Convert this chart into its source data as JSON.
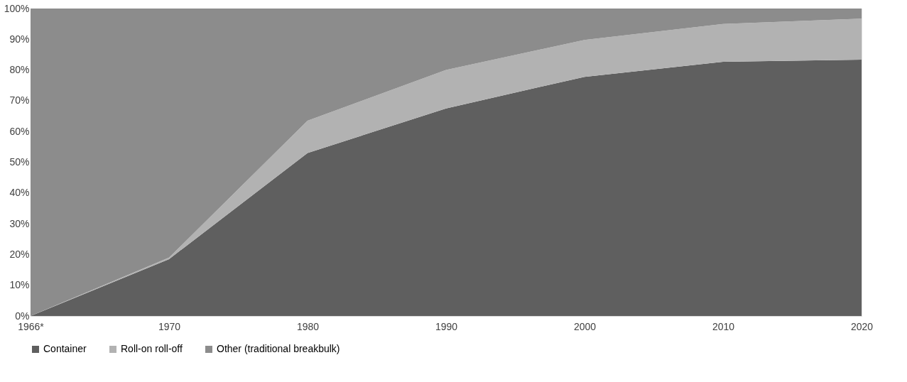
{
  "chart_data": {
    "type": "area",
    "stacked": true,
    "categories": [
      "1966*",
      "1970",
      "1980",
      "1990",
      "2000",
      "2010",
      "2020"
    ],
    "series": [
      {
        "name": "Container",
        "color": "#5f5f5f",
        "values": [
          0,
          18.5,
          53,
          67.5,
          77.8,
          82.7,
          83.4
        ]
      },
      {
        "name": "Roll-on roll-off",
        "color": "#b2b2b2",
        "values": [
          0,
          0.5,
          10.5,
          12.5,
          12,
          12.3,
          13.3
        ]
      },
      {
        "name": "Other (traditional breakbulk)",
        "color": "#8c8c8c",
        "values": [
          100,
          81,
          36.5,
          20,
          10.2,
          5,
          3.3
        ]
      }
    ],
    "ylim": [
      0,
      100
    ],
    "yticks": [
      {
        "value": 0,
        "label": "0%"
      },
      {
        "value": 10,
        "label": "10%"
      },
      {
        "value": 20,
        "label": "20%"
      },
      {
        "value": 30,
        "label": "30%"
      },
      {
        "value": 40,
        "label": "40%"
      },
      {
        "value": 50,
        "label": "50%"
      },
      {
        "value": 60,
        "label": "60%"
      },
      {
        "value": 70,
        "label": "70%"
      },
      {
        "value": 80,
        "label": "80%"
      },
      {
        "value": 90,
        "label": "90%"
      },
      {
        "value": 100,
        "label": "100%"
      }
    ],
    "grid": false,
    "legend": "bottom"
  }
}
